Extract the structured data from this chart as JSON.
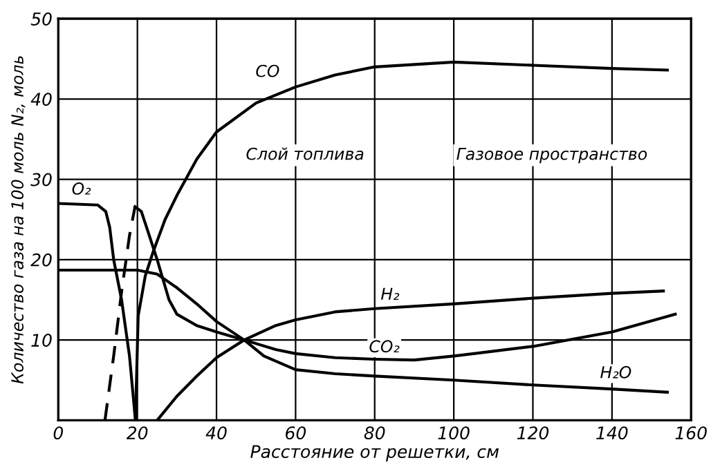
{
  "chart_data": {
    "type": "line",
    "xlabel": "Расстояние от решетки, см",
    "ylabel": "Количество газа на 100 моль N₂, моль",
    "xlim": [
      0,
      160
    ],
    "xticks": [
      0,
      20,
      40,
      60,
      80,
      100,
      120,
      140,
      160
    ],
    "ylim": [
      0,
      50
    ],
    "yticks": [
      10,
      20,
      30,
      40,
      50
    ],
    "grid": true,
    "marker": "none",
    "series": [
      {
        "name": "O₂",
        "color": "#000000",
        "line_style": "solid",
        "x": [
          0,
          10,
          12,
          13,
          14,
          16,
          18,
          19.5
        ],
        "values": [
          27,
          26.8,
          26,
          24,
          20,
          15,
          8,
          0
        ]
      },
      {
        "color": "#000000",
        "line_style": "dashed",
        "x": [
          11.8,
          14,
          16,
          18,
          19.4
        ],
        "values": [
          0,
          8,
          16,
          23,
          26.6
        ]
      },
      {
        "name": "H₂O",
        "color": "#000000",
        "line_style": "solid",
        "x": [
          19.4,
          21,
          23,
          25,
          28,
          30,
          35,
          40,
          47,
          52,
          60,
          70,
          80,
          100,
          120,
          140,
          154
        ],
        "values": [
          26.6,
          26,
          23,
          20,
          15,
          13.2,
          11.8,
          11,
          10,
          8,
          6.3,
          5.8,
          5.5,
          5,
          4.4,
          3.9,
          3.5
        ]
      },
      {
        "name": "CO",
        "color": "#000000",
        "line_style": "solid",
        "x": [
          19.5,
          20.2,
          22,
          24,
          27,
          30,
          35,
          40,
          50,
          60,
          70,
          80,
          100,
          120,
          140,
          154
        ],
        "values": [
          0,
          13,
          18,
          21,
          25,
          28,
          32.5,
          35.9,
          39.5,
          41.5,
          43,
          44,
          44.6,
          44.2,
          43.8,
          43.6
        ]
      },
      {
        "name": "CO₂",
        "color": "#000000",
        "line_style": "solid",
        "x": [
          0,
          20,
          25,
          30,
          35,
          40,
          47,
          55,
          60,
          70,
          80,
          90,
          100,
          110,
          120,
          130,
          140,
          156
        ],
        "values": [
          18.7,
          18.7,
          18.2,
          16.5,
          14.5,
          12.3,
          10,
          8.8,
          8.3,
          7.8,
          7.6,
          7.5,
          8,
          8.6,
          9.2,
          10.1,
          11,
          13.2
        ]
      },
      {
        "name": "H₂",
        "color": "#000000",
        "line_style": "solid",
        "x": [
          25,
          30,
          35,
          40,
          47,
          55,
          60,
          70,
          80,
          100,
          120,
          140,
          153
        ],
        "values": [
          0,
          3,
          5.5,
          7.8,
          10,
          11.8,
          12.5,
          13.5,
          13.9,
          14.5,
          15.2,
          15.8,
          16.1
        ]
      }
    ],
    "annotations": [
      "Слой топлива",
      "Газовое пространство"
    ]
  }
}
